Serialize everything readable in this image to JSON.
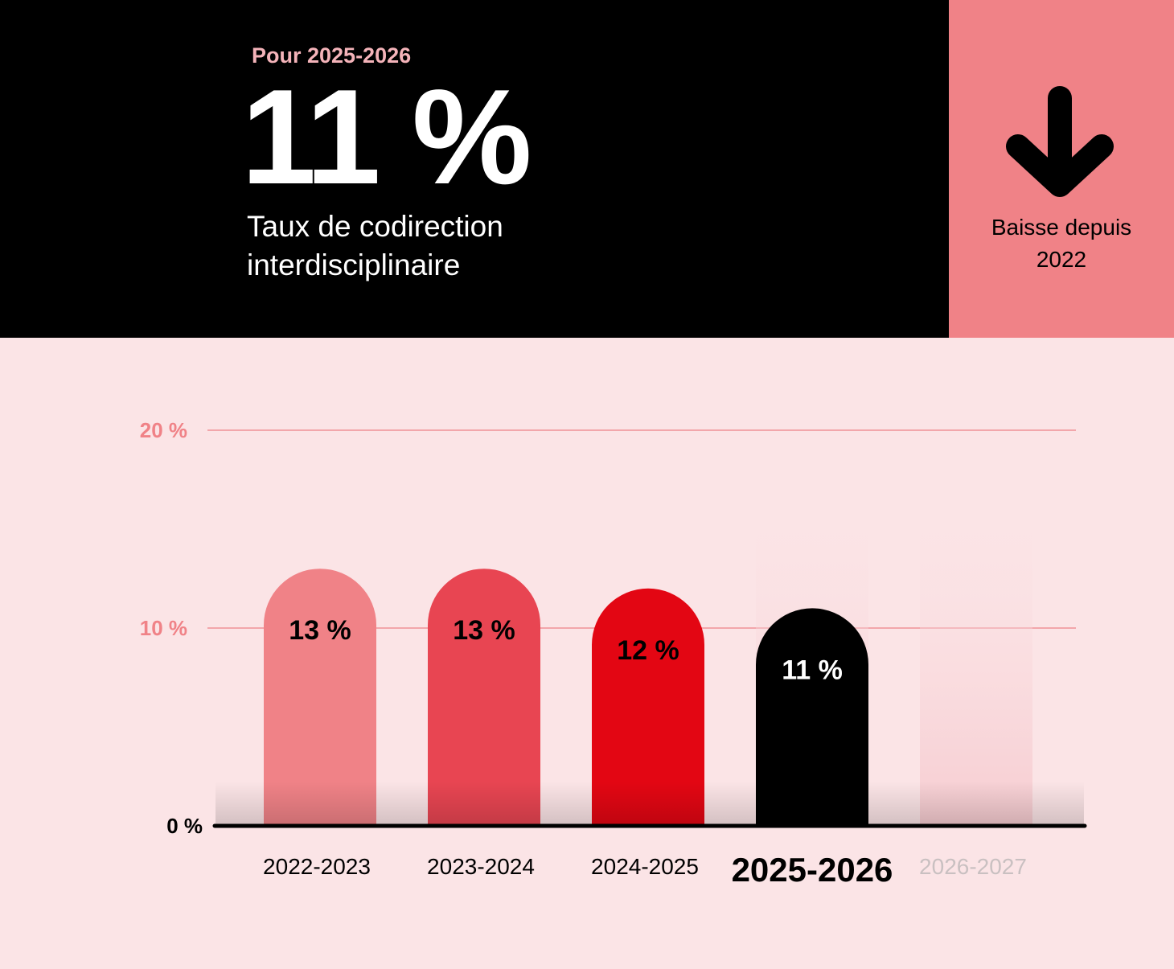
{
  "header": {
    "kicker": "Pour 2025-2026",
    "value": "11 %",
    "subtitle_line1": "Taux de codirection",
    "subtitle_line2": "interdisciplinaire"
  },
  "trend": {
    "icon": "arrow-down-icon",
    "line1": "Baisse depuis",
    "line2": "2022"
  },
  "chart_data": {
    "type": "bar",
    "categories": [
      "2022-2023",
      "2023-2024",
      "2024-2025",
      "2025-2026",
      "2026-2027"
    ],
    "values": [
      13,
      13,
      12,
      11,
      null
    ],
    "value_labels": [
      "13 %",
      "13 %",
      "12 %",
      "11 %",
      ""
    ],
    "highlight_category": "2025-2026",
    "y_ticks": [
      0,
      10,
      20
    ],
    "y_tick_labels": [
      "0 %",
      "10 %",
      "20 %"
    ],
    "ylim": [
      0,
      20
    ],
    "grid": true,
    "colors": [
      "#f08287",
      "#e84552",
      "#e30613",
      "#000000",
      "#f8d6da"
    ],
    "axis_color": "#000000",
    "grid_color": "#f2a6ab",
    "tick_label_color": "#f08287"
  }
}
